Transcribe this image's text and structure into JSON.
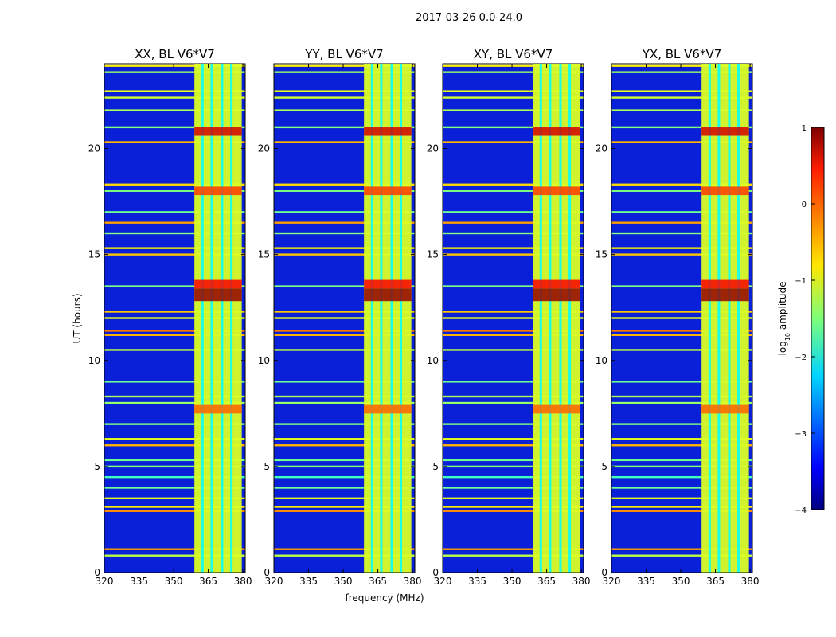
{
  "chart_data": {
    "type": "heatmap",
    "suptitle": "2017-03-26 0.0-24.0",
    "xlabel": "frequency (MHz)",
    "ylabel": "UT (hours)",
    "xlim": [
      320,
      381
    ],
    "ylim": [
      0,
      24
    ],
    "xticks": [
      320,
      335,
      350,
      365,
      380
    ],
    "yticks": [
      0,
      5,
      10,
      15,
      20
    ],
    "panels": [
      {
        "title": "XX, BL V6*V7",
        "polarization": "XX"
      },
      {
        "title": "YY, BL V6*V7",
        "polarization": "YY"
      },
      {
        "title": "XY, BL V6*V7",
        "polarization": "XY"
      },
      {
        "title": "YX, BL V6*V7",
        "polarization": "YX"
      }
    ],
    "signal_band_mhz": [
      359,
      379.5
    ],
    "colorbar": {
      "label_main": "log",
      "label_sub": "10",
      "label_rest": " amplitude",
      "range": [
        -4,
        1
      ],
      "ticks": [
        "1",
        "0",
        "−1",
        "−2",
        "−3",
        "−4"
      ],
      "tick_values": [
        1,
        0,
        -1,
        -2,
        -3,
        -4
      ],
      "colormap": "jet"
    },
    "rfi_lines_hours": [
      {
        "t": 0.8,
        "v": -1.2
      },
      {
        "t": 1.1,
        "v": -0.4
      },
      {
        "t": 2.9,
        "v": -0.3
      },
      {
        "t": 3.1,
        "v": -0.8
      },
      {
        "t": 3.5,
        "v": -1.0
      },
      {
        "t": 4.0,
        "v": -1.6
      },
      {
        "t": 4.5,
        "v": -1.8
      },
      {
        "t": 5.0,
        "v": -1.5
      },
      {
        "t": 5.3,
        "v": -1.6
      },
      {
        "t": 6.0,
        "v": -0.5
      },
      {
        "t": 6.3,
        "v": -1.0
      },
      {
        "t": 7.0,
        "v": -1.5
      },
      {
        "t": 8.0,
        "v": -1.4
      },
      {
        "t": 8.3,
        "v": -1.3
      },
      {
        "t": 9.0,
        "v": -1.6
      },
      {
        "t": 10.5,
        "v": -1.2
      },
      {
        "t": 11.2,
        "v": -0.5
      },
      {
        "t": 11.4,
        "v": -0.2
      },
      {
        "t": 12.0,
        "v": -1.0
      },
      {
        "t": 12.3,
        "v": -0.6
      },
      {
        "t": 13.5,
        "v": -1.5
      },
      {
        "t": 15.0,
        "v": -0.6
      },
      {
        "t": 15.3,
        "v": -0.8
      },
      {
        "t": 16.0,
        "v": -1.5
      },
      {
        "t": 16.5,
        "v": -0.4
      },
      {
        "t": 17.0,
        "v": -1.6
      },
      {
        "t": 18.0,
        "v": -1.5
      },
      {
        "t": 18.3,
        "v": -0.7
      },
      {
        "t": 20.3,
        "v": -0.5
      },
      {
        "t": 21.0,
        "v": -1.5
      },
      {
        "t": 21.8,
        "v": -1.3
      },
      {
        "t": 22.4,
        "v": -1.1
      },
      {
        "t": 22.7,
        "v": -1.0
      },
      {
        "t": 23.6,
        "v": -1.4
      },
      {
        "t": 23.9,
        "v": -0.8
      }
    ],
    "bright_events_hours": [
      {
        "t0": 12.8,
        "t1": 13.4,
        "v": 0.9
      },
      {
        "t0": 13.4,
        "t1": 13.8,
        "v": 0.4
      },
      {
        "t0": 20.6,
        "t1": 21.0,
        "v": 0.6
      },
      {
        "t0": 17.8,
        "t1": 18.2,
        "v": 0.1
      },
      {
        "t0": 7.5,
        "t1": 7.9,
        "v": -0.1
      }
    ],
    "sub_band_gaps_mhz": [
      362.5,
      366.5,
      371.0,
      375.0
    ]
  }
}
